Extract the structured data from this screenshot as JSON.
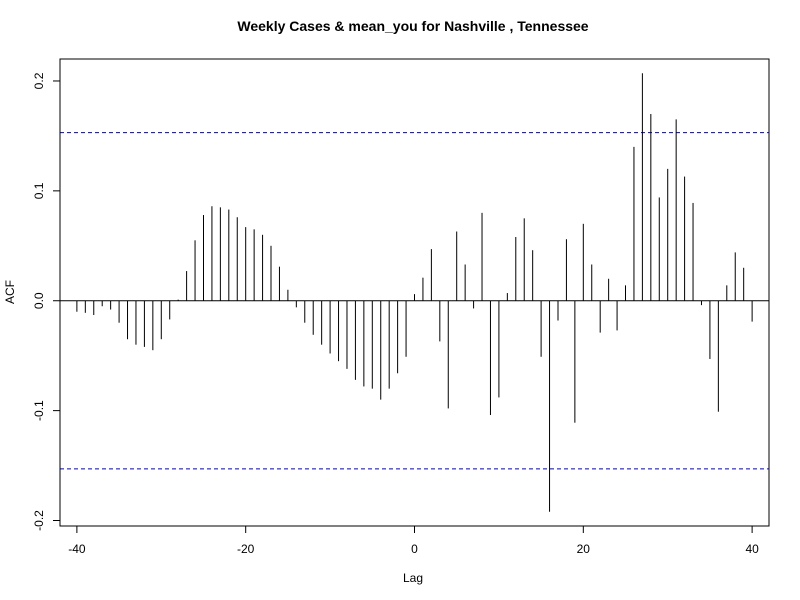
{
  "chart_data": {
    "type": "bar",
    "title": "Weekly Cases & mean_you for Nashville , Tennessee",
    "xlabel": "Lag",
    "ylabel": "ACF",
    "xlim": [
      -42,
      42
    ],
    "ylim": [
      -0.205,
      0.22
    ],
    "xticks": [
      -40,
      -20,
      0,
      20,
      40
    ],
    "yticks": [
      -0.2,
      -0.1,
      0.0,
      0.1,
      0.2
    ],
    "ytick_labels": [
      "-0.2",
      "-0.1",
      "0.0",
      "0.1",
      "0.2"
    ],
    "confidence_band": 0.153,
    "colors": {
      "bars": "#000000",
      "band": "#0000cc",
      "zero_line": "#000000"
    },
    "x": [
      -40,
      -39,
      -38,
      -37,
      -36,
      -35,
      -34,
      -33,
      -32,
      -31,
      -30,
      -29,
      -28,
      -27,
      -26,
      -25,
      -24,
      -23,
      -22,
      -21,
      -20,
      -19,
      -18,
      -17,
      -16,
      -15,
      -14,
      -13,
      -12,
      -11,
      -10,
      -9,
      -8,
      -7,
      -6,
      -5,
      -4,
      -3,
      -2,
      -1,
      0,
      1,
      2,
      3,
      4,
      5,
      6,
      7,
      8,
      9,
      10,
      11,
      12,
      13,
      14,
      15,
      16,
      17,
      18,
      19,
      20,
      21,
      22,
      23,
      24,
      25,
      26,
      27,
      28,
      29,
      30,
      31,
      32,
      33,
      34,
      35,
      36,
      37,
      38,
      39,
      40
    ],
    "values": [
      -0.01,
      -0.011,
      -0.013,
      -0.005,
      -0.008,
      -0.02,
      -0.035,
      -0.04,
      -0.042,
      -0.045,
      -0.035,
      -0.017,
      0.001,
      0.027,
      0.055,
      0.078,
      0.086,
      0.085,
      0.083,
      0.076,
      0.067,
      0.065,
      0.06,
      0.05,
      0.031,
      0.01,
      -0.006,
      -0.02,
      -0.031,
      -0.04,
      -0.048,
      -0.055,
      -0.062,
      -0.072,
      -0.078,
      -0.08,
      -0.09,
      -0.08,
      -0.066,
      -0.051,
      0.006,
      0.021,
      0.047,
      -0.037,
      -0.098,
      0.063,
      0.033,
      -0.007,
      0.08,
      -0.104,
      -0.088,
      0.007,
      0.058,
      0.075,
      0.046,
      -0.051,
      -0.192,
      -0.018,
      0.056,
      -0.111,
      0.07,
      0.033,
      -0.029,
      0.02,
      -0.027,
      0.014,
      0.14,
      0.207,
      0.17,
      0.094,
      0.12,
      0.165,
      0.113,
      0.089,
      -0.004,
      -0.053,
      -0.101,
      0.014,
      0.044,
      0.03,
      -0.019
    ]
  }
}
